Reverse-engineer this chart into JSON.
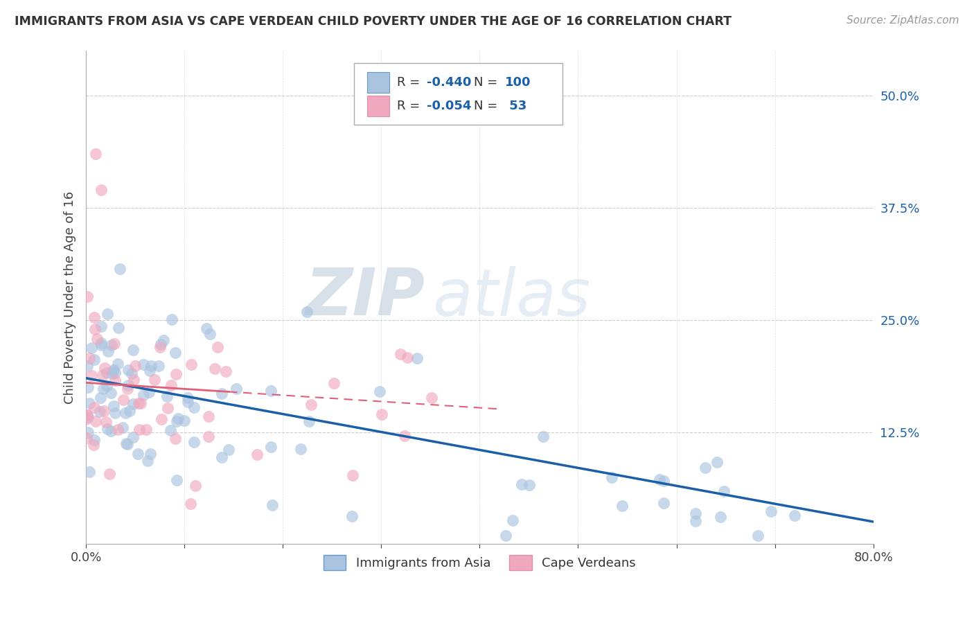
{
  "title": "IMMIGRANTS FROM ASIA VS CAPE VERDEAN CHILD POVERTY UNDER THE AGE OF 16 CORRELATION CHART",
  "source": "Source: ZipAtlas.com",
  "ylabel": "Child Poverty Under the Age of 16",
  "legend1_label": "Immigrants from Asia",
  "legend2_label": "Cape Verdeans",
  "R1": -0.44,
  "N1": 100,
  "R2": -0.054,
  "N2": 53,
  "color_blue": "#aac4e0",
  "color_pink": "#f0a8be",
  "line_blue": "#1a5fa8",
  "line_pink": "#e0607a",
  "xlim": [
    0.0,
    0.8
  ],
  "ylim": [
    0.0,
    0.55
  ],
  "yticks": [
    0.0,
    0.125,
    0.25,
    0.375,
    0.5
  ],
  "ytick_labels": [
    "",
    "12.5%",
    "25.0%",
    "37.5%",
    "50.0%"
  ],
  "xticks": [
    0.0,
    0.1,
    0.2,
    0.3,
    0.4,
    0.5,
    0.6,
    0.7,
    0.8
  ],
  "xtick_labels": [
    "0.0%",
    "",
    "",
    "",
    "",
    "",
    "",
    "",
    "80.0%"
  ],
  "watermark": "ZIPAtlas",
  "background_color": "#ffffff",
  "blue_intercept": 0.185,
  "blue_slope": -0.2,
  "pink_intercept": 0.18,
  "pink_slope": -0.07
}
